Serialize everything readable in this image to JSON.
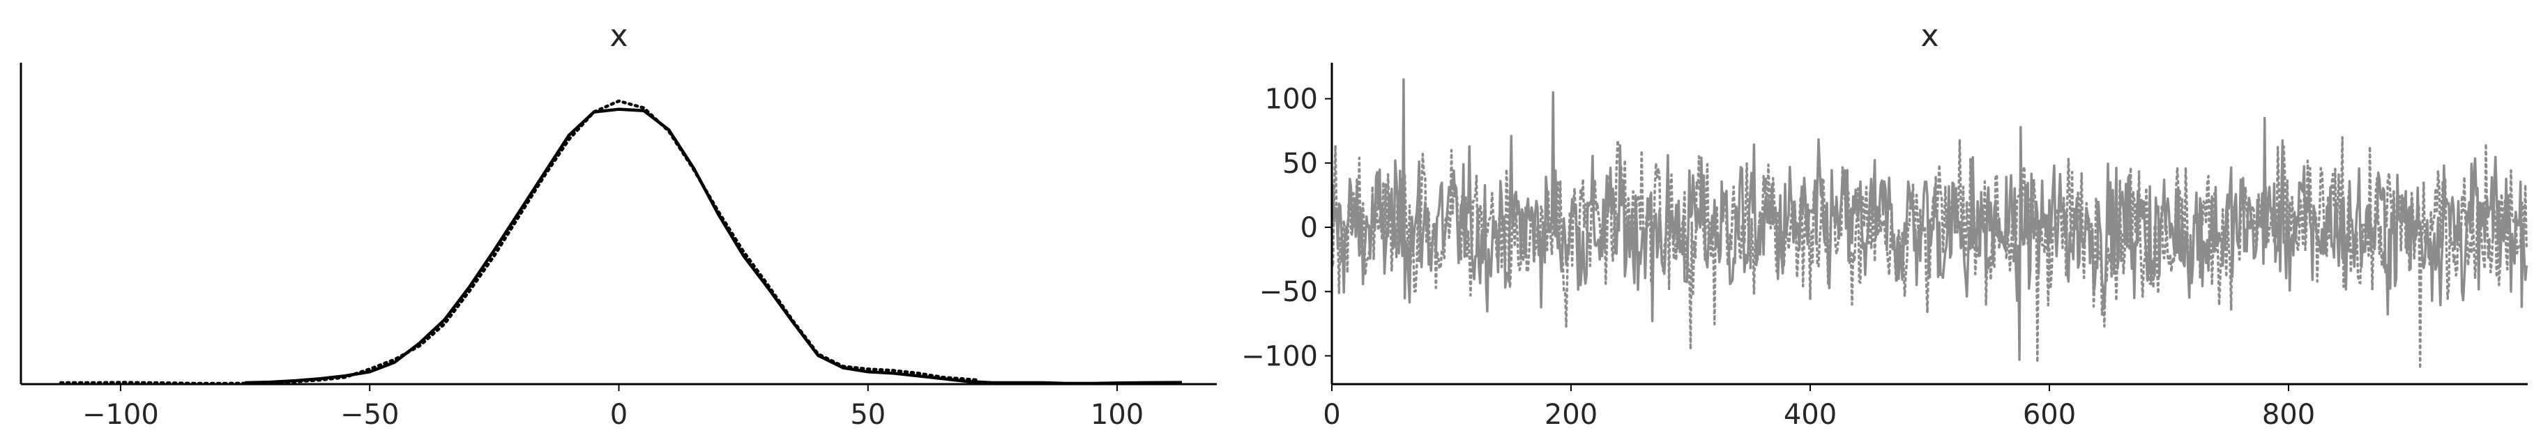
{
  "chart_data": [
    {
      "type": "line",
      "title": "x",
      "xlim": [
        -120,
        120
      ],
      "ylim": [
        0,
        0.0235
      ],
      "xticks": [
        -100,
        -50,
        0,
        50,
        100
      ],
      "xtick_labels": [
        "−100",
        "−50",
        "0",
        "50",
        "100"
      ],
      "yticks": [],
      "series": [
        {
          "style": "solid",
          "color": "#000000",
          "x": [
            -75,
            -70,
            -65,
            -60,
            -55,
            -50,
            -45,
            -40,
            -35,
            -30,
            -25,
            -20,
            -15,
            -10,
            -5,
            0,
            5,
            10,
            15,
            20,
            25,
            30,
            35,
            40,
            45,
            50,
            55,
            60,
            65,
            70,
            75,
            80,
            85,
            90,
            95,
            100,
            105,
            113
          ],
          "y": [
            0.0001,
            0.00015,
            0.00025,
            0.0004,
            0.0006,
            0.0009,
            0.0016,
            0.003,
            0.0047,
            0.0071,
            0.0098,
            0.0126,
            0.0154,
            0.0182,
            0.0199,
            0.0201,
            0.02,
            0.0186,
            0.0158,
            0.0124,
            0.0094,
            0.007,
            0.0045,
            0.0021,
            0.0012,
            0.0009,
            0.0008,
            0.0006,
            0.0004,
            0.0002,
            0.0001,
            0.0001,
            0.0001,
            5e-05,
            5e-05,
            8e-05,
            0.0001,
            0.00012
          ]
        },
        {
          "style": "dotted",
          "color": "#000000",
          "x": [
            -112,
            -105,
            -100,
            -95,
            -90,
            -85,
            -80,
            -75,
            -70,
            -65,
            -60,
            -55,
            -50,
            -45,
            -40,
            -35,
            -30,
            -25,
            -20,
            -15,
            -10,
            -5,
            0,
            5,
            10,
            15,
            20,
            25,
            30,
            35,
            40,
            45,
            50,
            55,
            60,
            65,
            72
          ],
          "y": [
            0.0001,
            0.0001,
            0.00012,
            0.0001,
            8e-05,
            5e-05,
            5e-05,
            6e-05,
            0.0001,
            0.00018,
            0.0003,
            0.0005,
            0.0011,
            0.0018,
            0.0028,
            0.0044,
            0.0068,
            0.0094,
            0.0123,
            0.0152,
            0.0179,
            0.0199,
            0.0207,
            0.0202,
            0.0185,
            0.0157,
            0.0126,
            0.0097,
            0.0072,
            0.0046,
            0.0022,
            0.0013,
            0.0011,
            0.001,
            0.0008,
            0.0005,
            0.0003
          ]
        }
      ]
    },
    {
      "type": "line",
      "title": "x",
      "xlim": [
        0,
        1000
      ],
      "ylim": [
        -122,
        128
      ],
      "xticks": [
        0,
        200,
        400,
        600,
        800
      ],
      "yticks": [
        -100,
        -50,
        0,
        50,
        100
      ],
      "ytick_labels": [
        "−100",
        "−50",
        "0",
        "50",
        "100"
      ],
      "series": [
        {
          "style": "solid",
          "color": "#8c8c8c",
          "n": 1000,
          "approx_std": 25,
          "spikes": [
            [
              60,
              115
            ],
            [
              185,
              105
            ],
            [
              575,
              -103
            ],
            [
              780,
              85
            ],
            [
              268,
              -73
            ],
            [
              930,
              48
            ]
          ]
        },
        {
          "style": "dotted",
          "color": "#8c8c8c",
          "n": 1000,
          "approx_std": 25,
          "spikes": [
            [
              100,
              60
            ],
            [
              300,
              -95
            ],
            [
              590,
              -105
            ],
            [
              910,
              -110
            ],
            [
              845,
              70
            ],
            [
              965,
              65
            ]
          ]
        }
      ]
    }
  ]
}
